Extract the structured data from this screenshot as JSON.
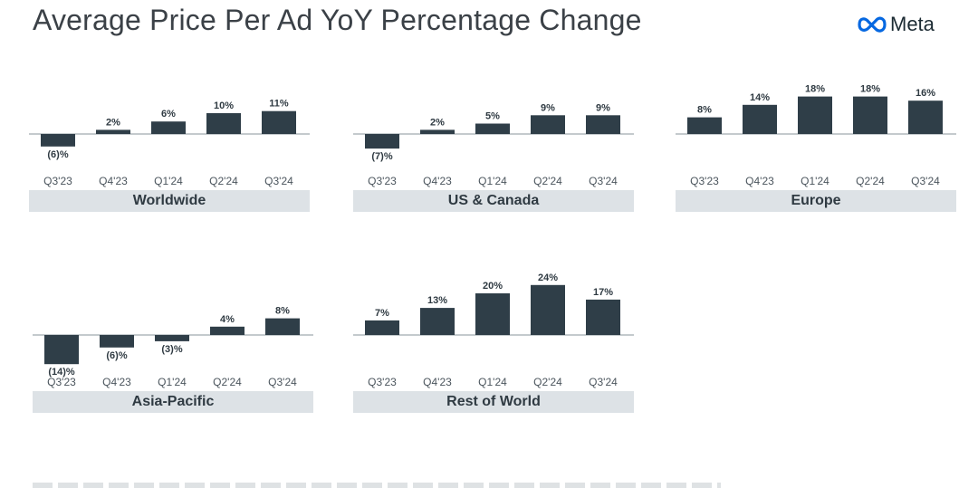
{
  "title": "Average Price Per Ad YoY Percentage Change",
  "brand": {
    "name": "Meta",
    "logo_icon": "meta-infinity-icon",
    "logo_color": "#0668E1"
  },
  "colors": {
    "bar": "#2f3e48",
    "axis": "#8a949b",
    "band": "#dde2e6"
  },
  "chart_data": [
    {
      "type": "bar",
      "title": "Worldwide",
      "categories": [
        "Q3'23",
        "Q4'23",
        "Q1'24",
        "Q2'24",
        "Q3'24"
      ],
      "values": [
        -6,
        2,
        6,
        10,
        11
      ],
      "labels": [
        "(6)%",
        "2%",
        "6%",
        "10%",
        "11%"
      ]
    },
    {
      "type": "bar",
      "title": "US & Canada",
      "categories": [
        "Q3'23",
        "Q4'23",
        "Q1'24",
        "Q2'24",
        "Q3'24"
      ],
      "values": [
        -7,
        2,
        5,
        9,
        9
      ],
      "labels": [
        "(7)%",
        "2%",
        "5%",
        "9%",
        "9%"
      ]
    },
    {
      "type": "bar",
      "title": "Europe",
      "categories": [
        "Q3'23",
        "Q4'23",
        "Q1'24",
        "Q2'24",
        "Q3'24"
      ],
      "values": [
        8,
        14,
        18,
        18,
        16
      ],
      "labels": [
        "8%",
        "14%",
        "18%",
        "18%",
        "16%"
      ]
    },
    {
      "type": "bar",
      "title": "Asia-Pacific",
      "categories": [
        "Q3'23",
        "Q4'23",
        "Q1'24",
        "Q2'24",
        "Q3'24"
      ],
      "values": [
        -14,
        -6,
        -3,
        4,
        8
      ],
      "labels": [
        "(14)%",
        "(6)%",
        "(3)%",
        "4%",
        "8%"
      ]
    },
    {
      "type": "bar",
      "title": "Rest of World",
      "categories": [
        "Q3'23",
        "Q4'23",
        "Q1'24",
        "Q2'24",
        "Q3'24"
      ],
      "values": [
        7,
        13,
        20,
        24,
        17
      ],
      "labels": [
        "7%",
        "13%",
        "20%",
        "24%",
        "17%"
      ]
    }
  ]
}
